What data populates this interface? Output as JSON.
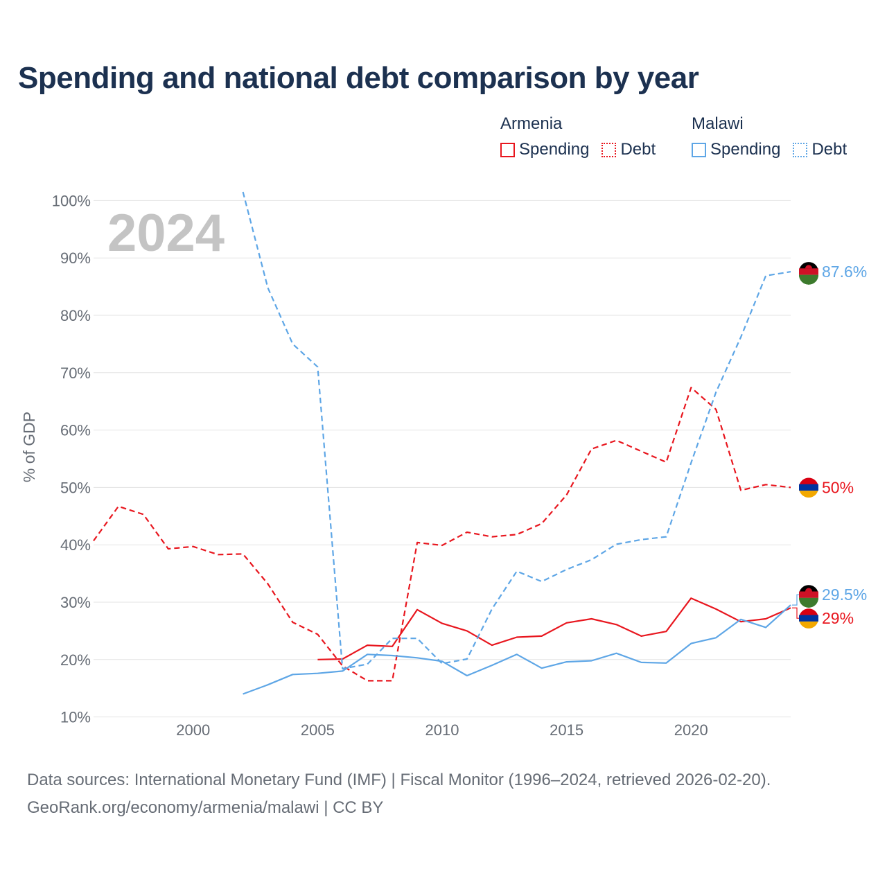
{
  "title": "Spending and national debt comparison by year",
  "legend": {
    "groups": [
      {
        "name": "Armenia",
        "color": "#e8161e",
        "items": [
          {
            "label": "Spending",
            "style": "solid"
          },
          {
            "label": "Debt",
            "style": "dotted"
          }
        ]
      },
      {
        "name": "Malawi",
        "color": "#5ea6e6",
        "items": [
          {
            "label": "Spending",
            "style": "solid"
          },
          {
            "label": "Debt",
            "style": "dotted"
          }
        ]
      }
    ]
  },
  "colors": {
    "armenia": "#e8161e",
    "malawi": "#5ea6e6",
    "grid": "#e3e3e3",
    "axis_text": "#666c75",
    "year_label": "#c4c4c4"
  },
  "chart_data": {
    "type": "line",
    "year_label": "2024",
    "ylabel": "% of GDP",
    "xlim": [
      1996,
      2024
    ],
    "ylim": [
      5,
      105
    ],
    "x_ticks": [
      2000,
      2005,
      2010,
      2015,
      2020
    ],
    "y_ticks": [
      10,
      20,
      30,
      40,
      50,
      60,
      70,
      80,
      90,
      100
    ],
    "y_tick_labels": [
      "10%",
      "20%",
      "30%",
      "40%",
      "50%",
      "60%",
      "70%",
      "80%",
      "90%",
      "100%"
    ],
    "series": [
      {
        "name": "Armenia Debt",
        "country": "armenia",
        "dash": true,
        "x": [
          1996,
          1997,
          1998,
          1999,
          2000,
          2001,
          2002,
          2003,
          2004,
          2005,
          2006,
          2007,
          2008,
          2009,
          2010,
          2011,
          2012,
          2013,
          2014,
          2015,
          2016,
          2017,
          2018,
          2019,
          2020,
          2021,
          2022,
          2023,
          2024
        ],
        "values": [
          40.7,
          46.7,
          45.3,
          39.3,
          39.7,
          38.3,
          38.4,
          33.2,
          26.5,
          24.4,
          18.9,
          16.3,
          16.3,
          40.4,
          39.9,
          42.2,
          41.4,
          41.8,
          43.7,
          48.7,
          56.7,
          58.2,
          56.3,
          54.4,
          67.4,
          63.6,
          49.5,
          50.5,
          50.0
        ]
      },
      {
        "name": "Armenia Spending",
        "country": "armenia",
        "dash": false,
        "x": [
          2005,
          2006,
          2007,
          2008,
          2009,
          2010,
          2011,
          2012,
          2013,
          2014,
          2015,
          2016,
          2017,
          2018,
          2019,
          2020,
          2021,
          2022,
          2023,
          2024
        ],
        "values": [
          20.0,
          20.1,
          22.5,
          22.3,
          28.7,
          26.3,
          25.0,
          22.5,
          23.9,
          24.1,
          26.4,
          27.1,
          26.1,
          24.1,
          24.9,
          30.7,
          28.8,
          26.6,
          27.1,
          29.0
        ]
      },
      {
        "name": "Malawi Debt",
        "country": "malawi",
        "dash": true,
        "x": [
          2002,
          2003,
          2004,
          2005,
          2006,
          2007,
          2008,
          2009,
          2010,
          2011,
          2012,
          2013,
          2014,
          2015,
          2016,
          2017,
          2018,
          2019,
          2020,
          2021,
          2022,
          2023,
          2024
        ],
        "values": [
          101.5,
          84.8,
          75.0,
          71.0,
          18.4,
          19.2,
          23.7,
          23.7,
          19.3,
          20.1,
          28.8,
          35.4,
          33.6,
          35.7,
          37.4,
          40.1,
          40.9,
          41.4,
          54.3,
          66.6,
          76.2,
          86.9,
          87.6
        ]
      },
      {
        "name": "Malawi Spending",
        "country": "malawi",
        "dash": false,
        "x": [
          2002,
          2003,
          2004,
          2005,
          2006,
          2007,
          2008,
          2009,
          2010,
          2011,
          2012,
          2013,
          2014,
          2015,
          2016,
          2017,
          2018,
          2019,
          2020,
          2021,
          2022,
          2023,
          2024
        ],
        "values": [
          14.0,
          15.6,
          17.4,
          17.6,
          18.0,
          20.9,
          20.7,
          20.3,
          19.7,
          17.2,
          19.0,
          20.9,
          18.5,
          19.6,
          19.8,
          21.1,
          19.5,
          19.4,
          22.8,
          23.8,
          27.0,
          25.6,
          29.5
        ]
      }
    ],
    "end_labels": [
      {
        "text": "87.6%",
        "country": "malawi",
        "value": 87.6
      },
      {
        "text": "50%",
        "country": "armenia",
        "value": 50.0
      },
      {
        "text": "29.5%",
        "country": "malawi",
        "value": 29.5
      },
      {
        "text": "29%",
        "country": "armenia",
        "value": 29.0
      }
    ]
  },
  "source": {
    "line1": "Data sources: International Monetary Fund (IMF) | Fiscal Monitor (1996–2024, retrieved 2026-02-20).",
    "line2": "GeoRank.org/economy/armenia/malawi | CC BY"
  }
}
